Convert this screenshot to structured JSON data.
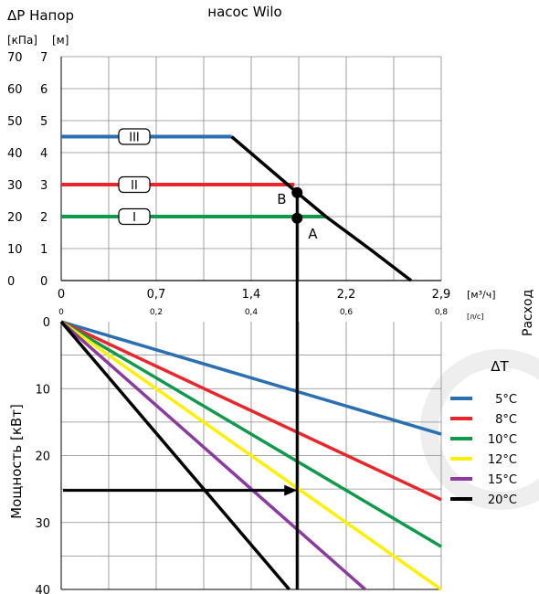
{
  "chart_data": [
    {
      "type": "line",
      "panel": "head",
      "title": "насос Wilo",
      "ylabel": "ΔP Напор",
      "yunit_kpa": "[кПа]",
      "yunit_m": "[м]",
      "xlabel": "Расход",
      "xunit_m3h": "[м³/ч]",
      "xunit_ls": "[л/с]",
      "xlim_m3h": [
        0,
        2.9
      ],
      "ylim_kpa": [
        0,
        70
      ],
      "grid": true,
      "x_ticks_m3h": [
        "0",
        "0,7",
        "1,4",
        "2,2",
        "2,9"
      ],
      "x_ticks_ls": [
        "0",
        "0,2",
        "0,4",
        "0,6",
        "0,8"
      ],
      "y_ticks_kpa": [
        "0",
        "10",
        "20",
        "30",
        "40",
        "50",
        "60",
        "70"
      ],
      "y_ticks_m": [
        "0",
        "1",
        "2",
        "3",
        "4",
        "5",
        "6",
        "7"
      ],
      "series": [
        {
          "name": "III",
          "color": "#2a6fb2",
          "x": [
            0,
            1.3
          ],
          "y": [
            45,
            45
          ]
        },
        {
          "name": "II",
          "color": "#e8262b",
          "x": [
            0,
            1.78
          ],
          "y": [
            30,
            30
          ]
        },
        {
          "name": "I",
          "color": "#0e9a4a",
          "x": [
            0,
            2.02
          ],
          "y": [
            20,
            20
          ]
        },
        {
          "color": "#000000",
          "x": [
            1.3,
            1.8,
            2.02,
            2.35,
            2.67
          ],
          "y": [
            45,
            27.5,
            20,
            10,
            0
          ]
        }
      ],
      "points": [
        {
          "label": "B",
          "x": 1.8,
          "y": 27.5
        },
        {
          "label": "A",
          "x": 1.8,
          "y": 19.5
        }
      ]
    },
    {
      "type": "line",
      "panel": "power",
      "ylabel": "Мощность [кВт]",
      "legend_title": "ΔT",
      "legend_position": "right",
      "xlim_m3h": [
        0,
        2.9
      ],
      "ylim": [
        0,
        40
      ],
      "y_inverted": true,
      "grid": true,
      "y_ticks": [
        "0",
        "10",
        "20",
        "30",
        "40"
      ],
      "series": [
        {
          "name": "5°C",
          "color": "#2a6fb2",
          "x": [
            0,
            2.9
          ],
          "y": [
            0,
            16.8
          ]
        },
        {
          "name": "8°C",
          "color": "#e8262b",
          "x": [
            0,
            2.9
          ],
          "y": [
            0,
            26.6
          ]
        },
        {
          "name": "10°C",
          "color": "#0e9a4a",
          "x": [
            0,
            2.9
          ],
          "y": [
            0,
            33.6
          ]
        },
        {
          "name": "12°C",
          "color": "#ffef00",
          "x": [
            0,
            2.9
          ],
          "y": [
            0,
            40
          ]
        },
        {
          "name": "15°C",
          "color": "#8b3aa0",
          "x": [
            0,
            2.32
          ],
          "y": [
            0,
            40
          ]
        },
        {
          "name": "20°C",
          "color": "#000000",
          "x": [
            0,
            1.74
          ],
          "y": [
            0,
            40
          ]
        }
      ],
      "operating_flow_m3h": 1.8,
      "operating_power": 25.2
    }
  ]
}
